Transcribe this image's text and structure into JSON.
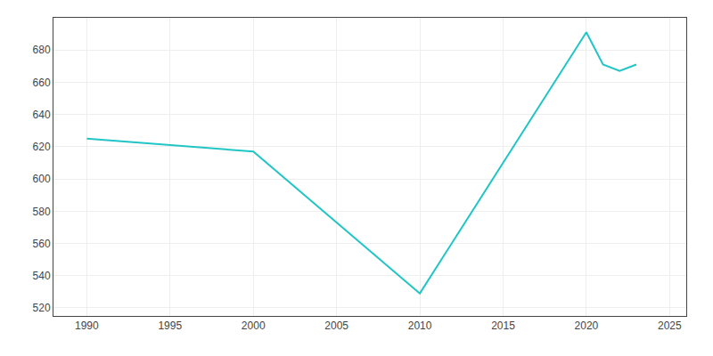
{
  "chart_data": {
    "type": "line",
    "x": [
      1990,
      1995,
      2000,
      2010,
      2020,
      2021,
      2022,
      2023
    ],
    "values": [
      625,
      621,
      617,
      529,
      691,
      671,
      667,
      671
    ],
    "color": "#22C5C5",
    "xlim": [
      1988,
      2026
    ],
    "ylim": [
      515,
      700
    ],
    "xticks": [
      1990,
      1995,
      2000,
      2005,
      2010,
      2015,
      2020,
      2025
    ],
    "yticks": [
      520,
      540,
      560,
      580,
      600,
      620,
      640,
      660,
      680
    ],
    "grid": true
  }
}
